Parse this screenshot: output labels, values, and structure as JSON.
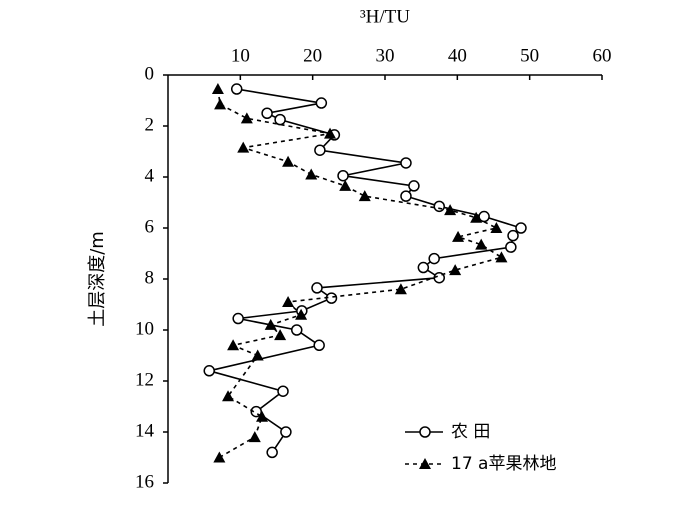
{
  "chart_data": {
    "type": "line",
    "x_label": "³H/TU",
    "y_label": "土层深度/m",
    "xlim": [
      0,
      60
    ],
    "xticks": [
      10,
      20,
      30,
      40,
      50,
      60
    ],
    "ylim": [
      0,
      16
    ],
    "yticks": [
      0,
      2,
      4,
      6,
      8,
      10,
      12,
      14,
      16
    ],
    "y_inverted": true,
    "legend_position": "lower right",
    "series": [
      {
        "name": "农 田",
        "color": "#000000",
        "marker": "circle",
        "dash": "solid",
        "x": [
          9.5,
          21.2,
          13.7,
          15.5,
          23.0,
          21.0,
          32.9,
          24.2,
          34.0,
          32.9,
          37.5,
          43.7,
          48.8,
          47.7,
          47.4,
          36.8,
          35.3,
          37.5,
          20.6,
          22.6,
          18.5,
          9.7,
          17.8,
          20.9,
          5.7,
          15.9,
          12.2,
          16.3,
          14.4
        ],
        "values": [
          0.55,
          1.1,
          1.5,
          1.75,
          2.35,
          2.95,
          3.45,
          3.95,
          4.35,
          4.75,
          5.15,
          5.55,
          6.0,
          6.3,
          6.75,
          7.2,
          7.55,
          7.95,
          8.35,
          8.75,
          9.25,
          9.55,
          10.0,
          10.6,
          11.6,
          12.4,
          13.2,
          14.0,
          14.8
        ]
      },
      {
        "name": "17 a苹果林地",
        "color": "#000000",
        "marker": "triangle",
        "dash": "dashed",
        "x": [
          6.9,
          7.2,
          10.9,
          22.4,
          10.4,
          16.6,
          19.8,
          24.5,
          27.2,
          39.0,
          42.6,
          45.4,
          40.1,
          43.3,
          46.1,
          39.7,
          32.2,
          16.6,
          18.4,
          14.2,
          15.5,
          9.0,
          12.4,
          8.3,
          13.0,
          12.0,
          7.1
        ],
        "values": [
          0.55,
          1.15,
          1.7,
          2.3,
          2.85,
          3.4,
          3.9,
          4.35,
          4.75,
          5.3,
          5.6,
          6.0,
          6.35,
          6.65,
          7.15,
          7.65,
          8.4,
          8.9,
          9.4,
          9.8,
          10.2,
          10.6,
          11.0,
          12.6,
          13.4,
          14.2,
          15.0
        ]
      }
    ]
  }
}
